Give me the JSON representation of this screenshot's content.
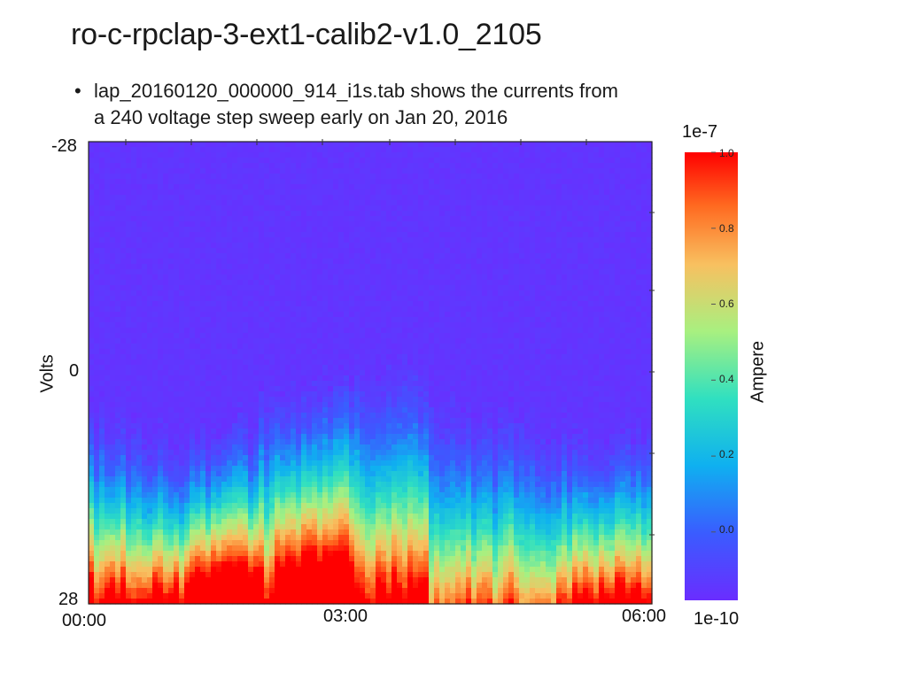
{
  "slide": {
    "title": "ro-c-rpclap-3-ext1-calib2-v1.0_2105",
    "bullet_dot": "•",
    "bullet_line1": "lap_20160120_000000_914_i1s.tab  shows the currents from",
    "bullet_line2": "a 240 voltage step sweep early on Jan 20, 2016"
  },
  "chart_data": {
    "type": "heatmap",
    "title": "",
    "xlabel": "",
    "ylabel": "Volts",
    "x_tick_labels": [
      "00:00",
      "03:00",
      "06:00"
    ],
    "y_tick_labels": [
      "-28",
      "0",
      "28"
    ],
    "x_range": [
      "00:00",
      "06:00"
    ],
    "y_range": [
      -28,
      28
    ],
    "y_steps": 240,
    "colorbar": {
      "label": "Ampere",
      "colormap": "rainbow",
      "top_annotation": "1e-7",
      "bottom_annotation": "1e-10",
      "tick_labels": [
        "1.0",
        "0.8",
        "0.6",
        "0.4",
        "0.2",
        "0.0"
      ],
      "tick_values": [
        1.0,
        0.8,
        0.6,
        0.4,
        0.2,
        0.0
      ],
      "range": [
        -0.18,
        1.0
      ]
    },
    "description_of_pattern": {
      "background_value": -0.15,
      "high_voltage_value": 1.0
    }
  },
  "colors": {
    "cmap_low": "#6a2dff",
    "cmap_mid_low": "#1e90ff",
    "cmap_mid": "#40e0a0",
    "cmap_mid_high": "#f4c060",
    "cmap_high": "#ff1a00"
  }
}
